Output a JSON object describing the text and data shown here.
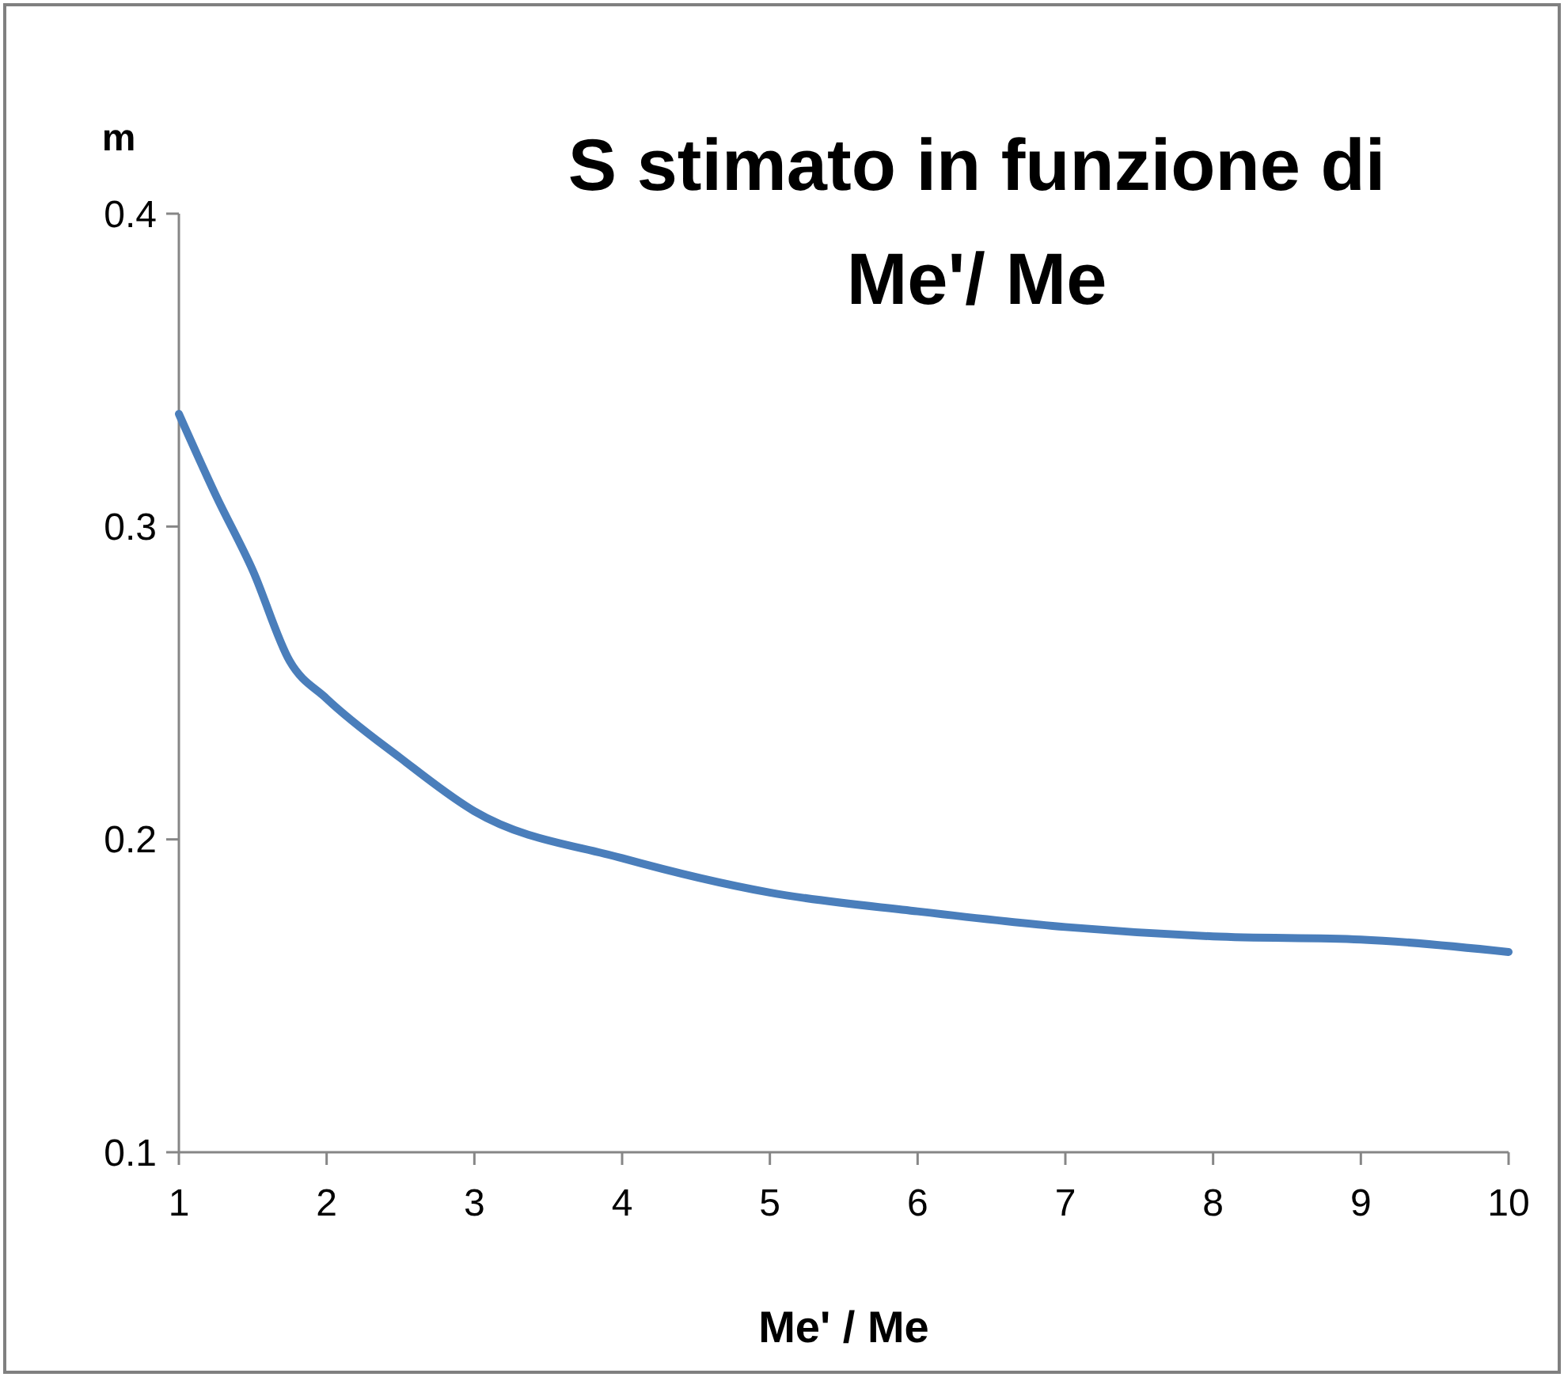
{
  "chart_data": {
    "type": "line",
    "title": "S stimato in funzione di\nMe'/ Me",
    "xlabel": "Me' / Me",
    "ylabel": "m",
    "x": [
      1,
      1.25,
      1.5,
      1.75,
      2,
      2.5,
      3,
      4,
      5,
      6,
      7,
      8,
      9,
      10
    ],
    "series": [
      {
        "color": "#4a7ebb",
        "values": [
          0.336,
          0.31,
          0.286,
          0.257,
          0.245,
          0.226,
          0.209,
          0.194,
          0.183,
          0.177,
          0.172,
          0.169,
          0.168,
          0.164
        ]
      }
    ],
    "xlim": [
      1,
      10
    ],
    "xticks": [
      1,
      2,
      3,
      4,
      5,
      6,
      7,
      8,
      9,
      10
    ],
    "ylim": [
      0.1,
      0.4
    ],
    "yticks": [
      0.1,
      0.2,
      0.3,
      0.4
    ],
    "grid": false,
    "marker": "none",
    "line_style": "solid"
  }
}
